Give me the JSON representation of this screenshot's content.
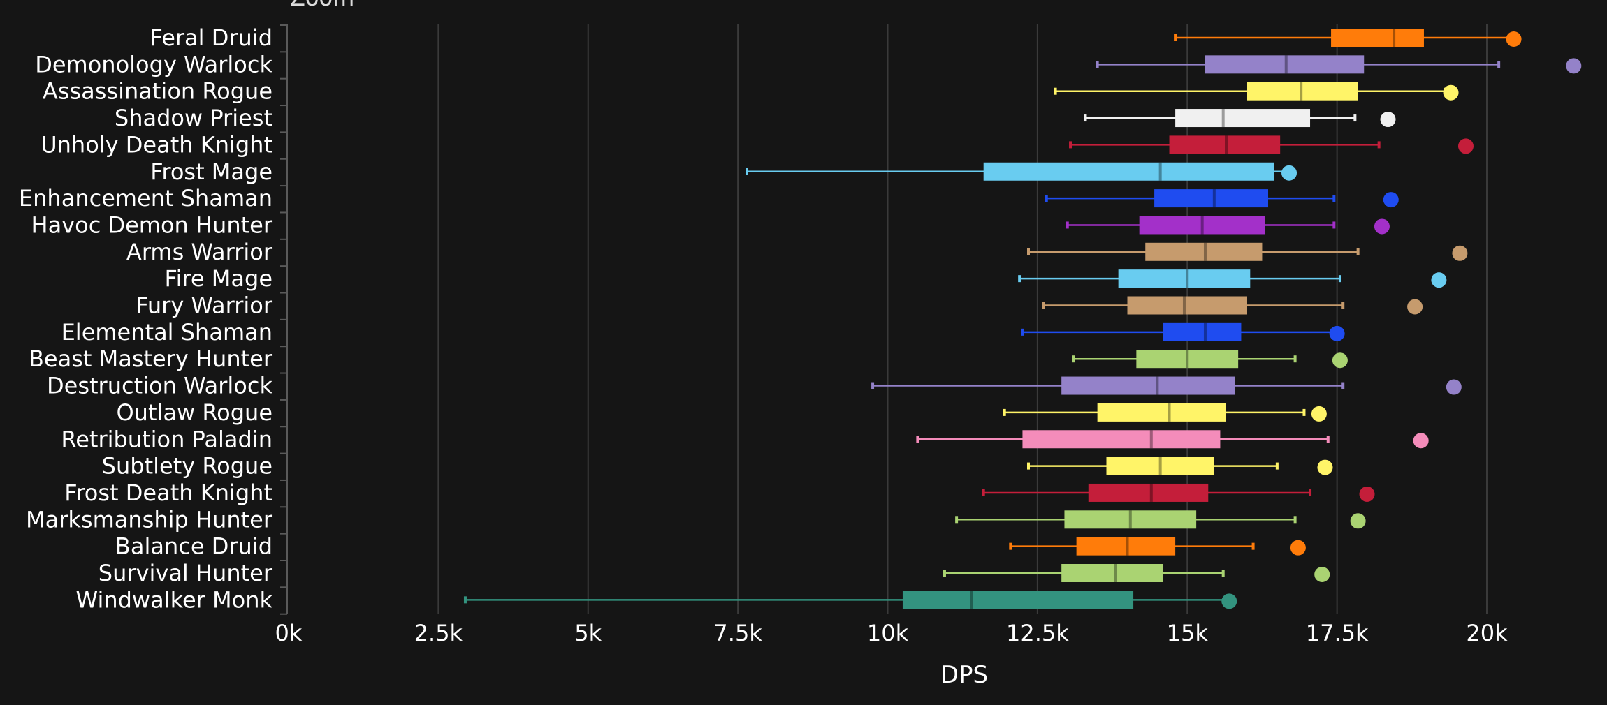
{
  "chart_data": {
    "type": "boxplot",
    "title": "",
    "xlabel": "DPS",
    "ylabel": "",
    "xlim": [
      0,
      21000
    ],
    "x_ticks": [
      0,
      2500,
      5000,
      7500,
      10000,
      12500,
      15000,
      17500,
      20000
    ],
    "x_tick_labels": [
      "0k",
      "2.5k",
      "5k",
      "7.5k",
      "10k",
      "12.5k",
      "15k",
      "17.5k",
      "20k"
    ],
    "grid": "vertical",
    "header_fragment": "Zoom",
    "categories": [
      "Feral Druid",
      "Demonology Warlock",
      "Assassination Rogue",
      "Shadow Priest",
      "Unholy Death Knight",
      "Frost Mage",
      "Enhancement Shaman",
      "Havoc Demon Hunter",
      "Arms Warrior",
      "Fire Mage",
      "Fury Warrior",
      "Elemental Shaman",
      "Beast Mastery Hunter",
      "Destruction Warlock",
      "Outlaw Rogue",
      "Retribution Paladin",
      "Subtlety Rogue",
      "Frost Death Knight",
      "Marksmanship Hunter",
      "Balance Druid",
      "Survival Hunter",
      "Windwalker Monk"
    ],
    "series": [
      {
        "spec": "Feral Druid",
        "color": "#ff7c0a",
        "min": 14800,
        "q1": 17400,
        "median": 18450,
        "q3": 18950,
        "max": 20400,
        "outlier": 20450
      },
      {
        "spec": "Demonology Warlock",
        "color": "#9482c9",
        "min": 13500,
        "q1": 15300,
        "median": 16650,
        "q3": 17950,
        "max": 20200,
        "outlier": 21450
      },
      {
        "spec": "Assassination Rogue",
        "color": "#fff468",
        "min": 12800,
        "q1": 16000,
        "median": 16900,
        "q3": 17850,
        "max": 19300,
        "outlier": 19400
      },
      {
        "spec": "Shadow Priest",
        "color": "#f0f0f0",
        "min": 13300,
        "q1": 14800,
        "median": 15600,
        "q3": 17050,
        "max": 17800,
        "outlier": 18350
      },
      {
        "spec": "Unholy Death Knight",
        "color": "#c41e3a",
        "min": 13050,
        "q1": 14700,
        "median": 15650,
        "q3": 16550,
        "max": 18200,
        "outlier": 19650
      },
      {
        "spec": "Frost Mage",
        "color": "#69ccf0",
        "min": 7650,
        "q1": 11600,
        "median": 14550,
        "q3": 16450,
        "max": 16700,
        "outlier": 16700
      },
      {
        "spec": "Enhancement Shaman",
        "color": "#1f4cf0",
        "min": 12650,
        "q1": 14450,
        "median": 15450,
        "q3": 16350,
        "max": 17450,
        "outlier": 18400
      },
      {
        "spec": "Havoc Demon Hunter",
        "color": "#a330c9",
        "min": 13000,
        "q1": 14200,
        "median": 15250,
        "q3": 16300,
        "max": 17450,
        "outlier": 18250
      },
      {
        "spec": "Arms Warrior",
        "color": "#c69b6d",
        "min": 12350,
        "q1": 14300,
        "median": 15300,
        "q3": 16250,
        "max": 17850,
        "outlier": 19550
      },
      {
        "spec": "Fire Mage",
        "color": "#69ccf0",
        "min": 12200,
        "q1": 13850,
        "median": 15000,
        "q3": 16050,
        "max": 17550,
        "outlier": 19200
      },
      {
        "spec": "Fury Warrior",
        "color": "#c69b6d",
        "min": 12600,
        "q1": 14000,
        "median": 14950,
        "q3": 16000,
        "max": 17600,
        "outlier": 18800
      },
      {
        "spec": "Elemental Shaman",
        "color": "#1f4cf0",
        "min": 12250,
        "q1": 14600,
        "median": 15300,
        "q3": 15900,
        "max": 17400,
        "outlier": 17500
      },
      {
        "spec": "Beast Mastery Hunter",
        "color": "#aad372",
        "min": 13100,
        "q1": 14150,
        "median": 15000,
        "q3": 15850,
        "max": 16800,
        "outlier": 17550
      },
      {
        "spec": "Destruction Warlock",
        "color": "#9482c9",
        "min": 9750,
        "q1": 12900,
        "median": 14500,
        "q3": 15800,
        "max": 17600,
        "outlier": 19450
      },
      {
        "spec": "Outlaw Rogue",
        "color": "#fff468",
        "min": 11950,
        "q1": 13500,
        "median": 14700,
        "q3": 15650,
        "max": 16950,
        "outlier": 17200
      },
      {
        "spec": "Retribution Paladin",
        "color": "#f48cba",
        "min": 10500,
        "q1": 12250,
        "median": 14400,
        "q3": 15550,
        "max": 17350,
        "outlier": 18900
      },
      {
        "spec": "Subtlety Rogue",
        "color": "#fff468",
        "min": 12350,
        "q1": 13650,
        "median": 14550,
        "q3": 15450,
        "max": 16500,
        "outlier": 17300
      },
      {
        "spec": "Frost Death Knight",
        "color": "#c41e3a",
        "min": 11600,
        "q1": 13350,
        "median": 14400,
        "q3": 15350,
        "max": 17050,
        "outlier": 18000
      },
      {
        "spec": "Marksmanship Hunter",
        "color": "#aad372",
        "min": 11150,
        "q1": 12950,
        "median": 14050,
        "q3": 15150,
        "max": 16800,
        "outlier": 17850
      },
      {
        "spec": "Balance Druid",
        "color": "#ff7c0a",
        "min": 12050,
        "q1": 13150,
        "median": 14000,
        "q3": 14800,
        "max": 16100,
        "outlier": 16850
      },
      {
        "spec": "Survival Hunter",
        "color": "#aad372",
        "min": 10950,
        "q1": 12900,
        "median": 13800,
        "q3": 14600,
        "max": 15600,
        "outlier": 17250
      },
      {
        "spec": "Windwalker Monk",
        "color": "#33937f",
        "min": 2950,
        "q1": 10250,
        "median": 11400,
        "q3": 14100,
        "max": 15700,
        "outlier": 15700
      }
    ]
  }
}
